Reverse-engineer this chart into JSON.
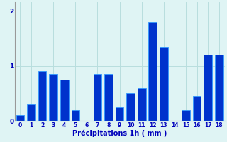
{
  "categories": [
    0,
    1,
    2,
    3,
    4,
    5,
    6,
    7,
    8,
    9,
    10,
    11,
    12,
    13,
    14,
    15,
    16,
    17,
    18
  ],
  "bar_values": [
    0.1,
    0.3,
    0.9,
    0.85,
    0.75,
    0.2,
    0.0,
    0.85,
    0.85,
    0.25,
    0.5,
    0.6,
    1.8,
    1.35,
    0.0,
    0.2,
    0.45,
    1.2,
    1.2
  ],
  "bar_color": "#0033cc",
  "bar_edge_color": "#3399ff",
  "background_color": "#dff4f4",
  "grid_color": "#b8dede",
  "text_color": "#0000bb",
  "xlabel": "Précipitations 1h ( mm )",
  "ylim": [
    0,
    2.15
  ],
  "yticks": [
    0,
    1,
    2
  ],
  "xlim_left": -0.5,
  "xlim_right": 18.5
}
